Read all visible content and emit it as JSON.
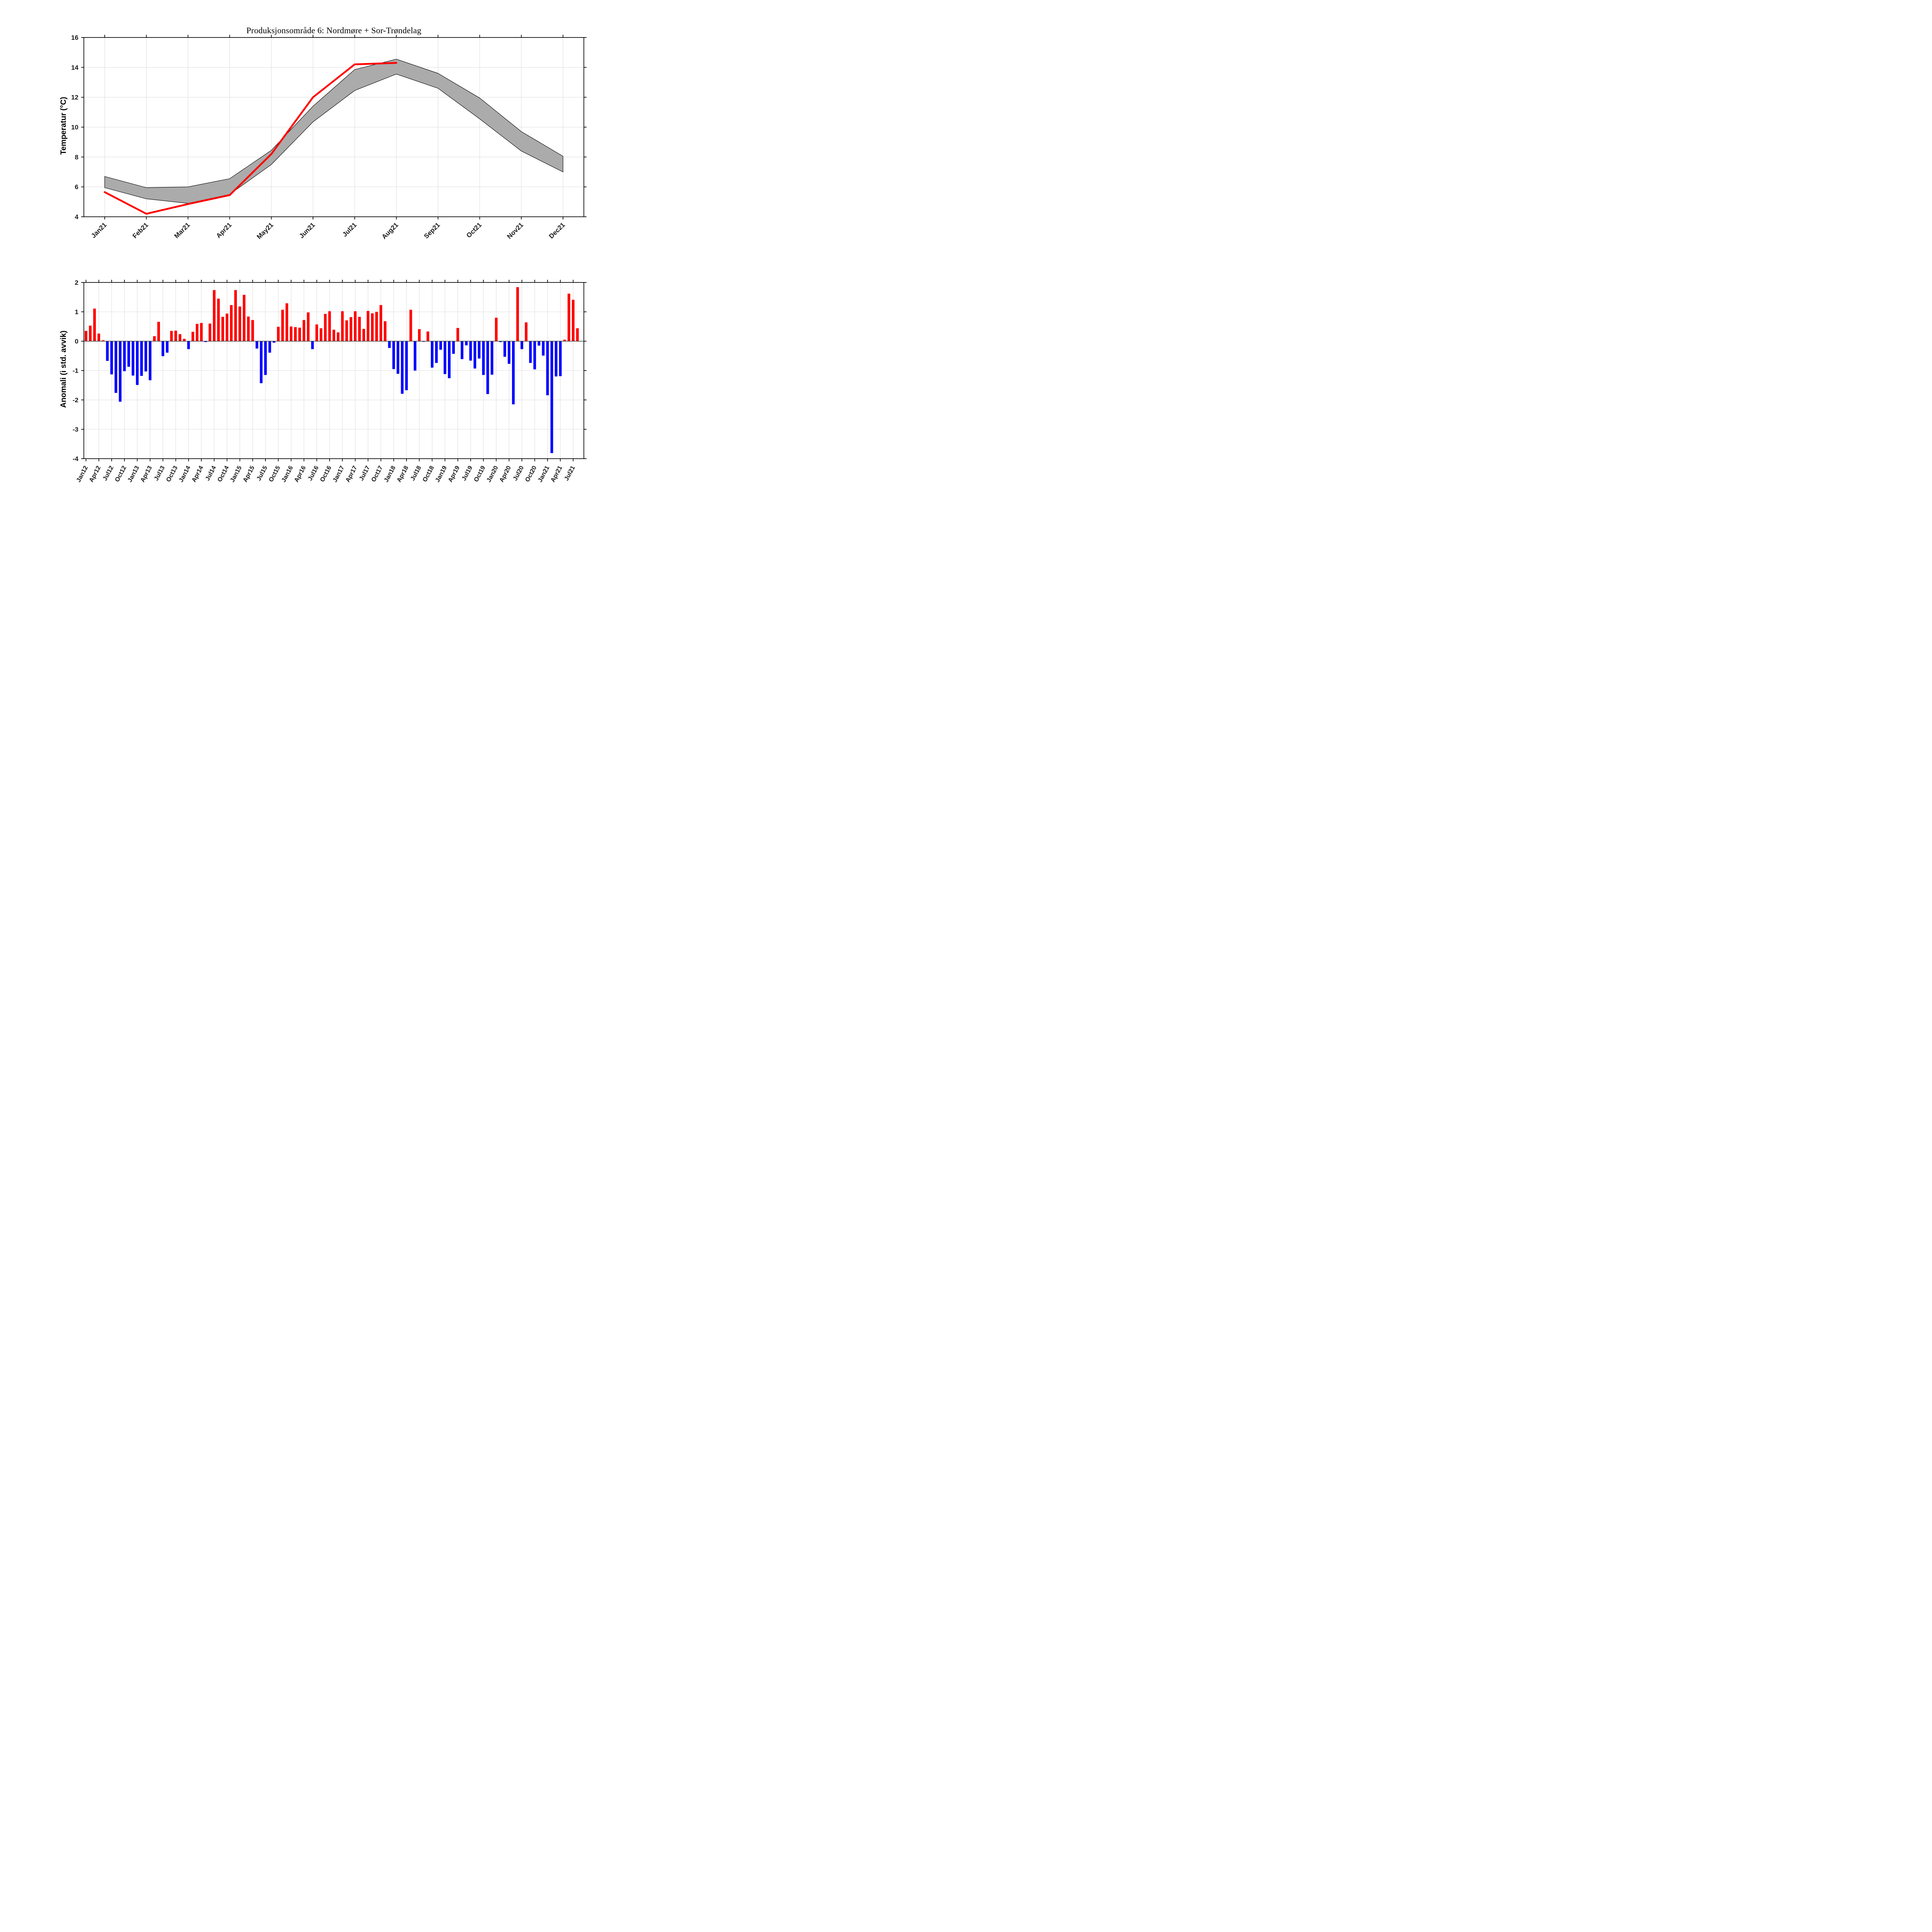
{
  "title": "Produksjonsområde 6: Nordmøre + Sor-Trøndelag",
  "colors": {
    "observed_line": "#ff0000",
    "band_fill": "#ababab",
    "band_edge": "#000000",
    "bar_positive": "#ff0000",
    "bar_negative": "#0000ff",
    "grid": "#dcdcdc",
    "axis": "#000000",
    "zero_line": "#3c3c3c",
    "background": "#ffffff"
  },
  "chart_data": [
    {
      "type": "area",
      "panel": "top",
      "title": "Produksjonsområde 6: Nordmøre + Sor-Trøndelag",
      "xlabel": "",
      "ylabel": "Temperatur (°C)",
      "ylim": [
        4,
        16
      ],
      "yticks": [
        4,
        6,
        8,
        10,
        12,
        14,
        16
      ],
      "grid": true,
      "legend_position": "none",
      "categories": [
        "Jan21",
        "Feb21",
        "Mar21",
        "Apr21",
        "May21",
        "Jun21",
        "Jul21",
        "Aug21",
        "Sep21",
        "Oct21",
        "Nov21",
        "Dec21"
      ],
      "series": [
        {
          "name": "klimatologi-min",
          "role": "band_lower",
          "values": [
            5.95,
            5.2,
            4.9,
            5.5,
            7.5,
            10.35,
            12.45,
            13.55,
            12.6,
            10.55,
            8.4,
            7.0
          ]
        },
        {
          "name": "klimatologi-maks",
          "role": "band_upper",
          "values": [
            6.7,
            5.95,
            6.0,
            6.55,
            8.45,
            11.4,
            13.85,
            14.55,
            13.6,
            11.95,
            9.7,
            8.05
          ]
        },
        {
          "name": "observert-2021",
          "role": "line",
          "color": "#ff0000",
          "values": [
            5.65,
            4.2,
            4.85,
            5.45,
            8.2,
            12.0,
            14.2,
            14.3
          ]
        }
      ]
    },
    {
      "type": "bar",
      "panel": "bottom",
      "xlabel": "",
      "ylabel": "Anomali (i std. avvik)",
      "ylim": [
        -4,
        2
      ],
      "yticks": [
        2,
        1,
        0,
        -1,
        -2,
        -3,
        -4
      ],
      "grid": true,
      "start_month": "Jan12",
      "end_month": "Aug21",
      "n_months": 116,
      "x_tick_step_months": 3,
      "x_tick_labels": [
        "Jan12",
        "Apr12",
        "Jul12",
        "Oct12",
        "Jan13",
        "Apr13",
        "Jul13",
        "Oct13",
        "Jan14",
        "Apr14",
        "Jul14",
        "Oct14",
        "Jan15",
        "Apr15",
        "Jul15",
        "Oct15",
        "Jan16",
        "Apr16",
        "Jul16",
        "Oct16",
        "Jan17",
        "Apr17",
        "Jul17",
        "Oct17",
        "Jan18",
        "Apr18",
        "Jul18",
        "Oct18",
        "Jan19",
        "Apr19",
        "Jul19",
        "Oct19",
        "Jan20",
        "Apr20",
        "Jul20",
        "Oct20",
        "Jan21",
        "Apr21",
        "Jul21"
      ],
      "values": [
        0.35,
        0.53,
        1.11,
        0.26,
        0.03,
        -0.67,
        -1.13,
        -1.76,
        -2.06,
        -1.02,
        -0.87,
        -1.17,
        -1.49,
        -1.18,
        -1.03,
        -1.33,
        0.17,
        0.66,
        -0.51,
        -0.39,
        0.35,
        0.36,
        0.24,
        0.08,
        -0.27,
        0.32,
        0.59,
        0.62,
        -0.03,
        0.6,
        1.74,
        1.45,
        0.83,
        0.94,
        1.23,
        1.74,
        1.18,
        1.58,
        0.84,
        0.72,
        -0.25,
        -1.43,
        -1.15,
        -0.39,
        -0.05,
        0.49,
        1.07,
        1.29,
        0.5,
        0.48,
        0.46,
        0.72,
        0.98,
        -0.27,
        0.57,
        0.44,
        0.93,
        1.02,
        0.39,
        0.3,
        1.02,
        0.71,
        0.82,
        1.02,
        0.83,
        0.42,
        1.03,
        0.95,
        1.0,
        1.23,
        0.68,
        -0.23,
        -0.95,
        -1.11,
        -1.79,
        -1.67,
        1.07,
        -1.0,
        0.41,
        -0.02,
        0.33,
        -0.9,
        -0.74,
        -0.29,
        -1.12,
        -1.26,
        -0.43,
        0.45,
        -0.61,
        -0.14,
        -0.66,
        -0.93,
        -0.59,
        -1.15,
        -1.8,
        -1.14,
        0.8,
        -0.03,
        -0.53,
        -0.77,
        -2.15,
        1.84,
        -0.27,
        0.64,
        -0.74,
        -0.96,
        -0.15,
        -0.49,
        -1.84,
        -3.81,
        -1.2,
        -1.19,
        0.05,
        1.62,
        1.41,
        0.44
      ]
    }
  ]
}
